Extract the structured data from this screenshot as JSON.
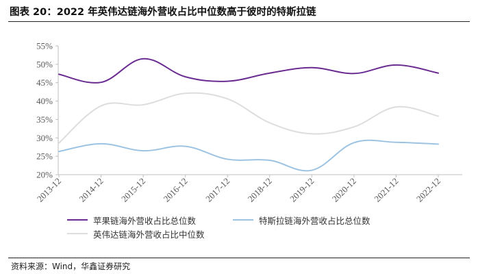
{
  "figure_title": "图表 20：2022 年英伟达链海外营收占比中位数高于彼时的特斯拉链",
  "source_note": "资料来源：Wind，华鑫证券研究",
  "colors": {
    "series_0": "#6a2c91",
    "series_1": "#9dc3e2",
    "series_2": "#dddddd",
    "axis": "#bfbfbf",
    "tick_text": "#595959"
  },
  "chart_data": {
    "type": "line",
    "title": "",
    "xlabel": "",
    "ylabel": "",
    "categories": [
      "2013-12",
      "2014-12",
      "2015-12",
      "2016-12",
      "2017-12",
      "2018-12",
      "2019-12",
      "2020-12",
      "2021-12",
      "2022-12"
    ],
    "ylim": [
      20,
      55
    ],
    "yticks": [
      "20%",
      "25%",
      "30%",
      "35%",
      "40%",
      "45%",
      "50%",
      "55%"
    ],
    "grid": false,
    "smooth": true,
    "legend_position": "bottom",
    "series": [
      {
        "name": "苹果链海外营收占比总位数",
        "values": [
          47.3,
          45.1,
          51.5,
          46.6,
          45.4,
          47.6,
          49.1,
          47.5,
          49.8,
          47.6
        ]
      },
      {
        "name": "特斯拉链海外营收占比总位数",
        "values": [
          26.3,
          28.4,
          26.5,
          27.7,
          24.2,
          23.9,
          21.2,
          28.7,
          28.8,
          28.3
        ]
      },
      {
        "name": "英伟达链海外营收占比中位数",
        "values": [
          28.6,
          38.7,
          39.0,
          42.1,
          40.6,
          34.1,
          31.1,
          33.0,
          38.4,
          35.9
        ]
      }
    ]
  }
}
